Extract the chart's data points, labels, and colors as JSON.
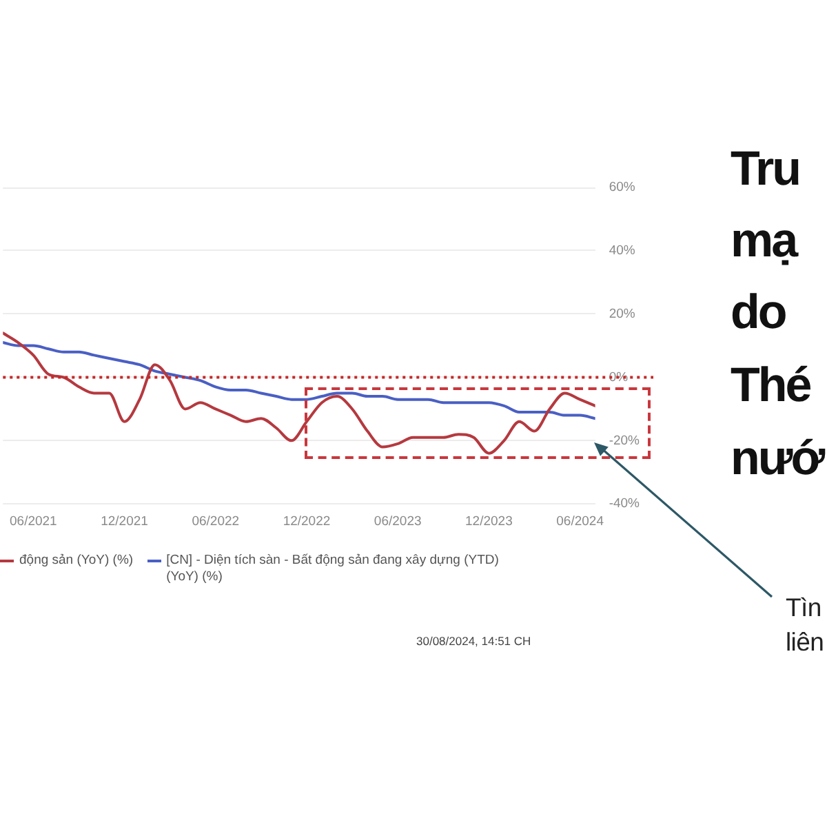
{
  "chart_data": {
    "type": "line",
    "x": [
      "2021-04",
      "2021-05",
      "2021-06",
      "2021-07",
      "2021-08",
      "2021-09",
      "2021-10",
      "2021-11",
      "2021-12",
      "2022-01",
      "2022-02",
      "2022-03",
      "2022-04",
      "2022-05",
      "2022-06",
      "2022-07",
      "2022-08",
      "2022-09",
      "2022-10",
      "2022-11",
      "2022-12",
      "2023-01",
      "2023-02",
      "2023-03",
      "2023-04",
      "2023-05",
      "2023-06",
      "2023-07",
      "2023-08",
      "2023-09",
      "2023-10",
      "2023-11",
      "2023-12",
      "2024-01",
      "2024-02",
      "2024-03",
      "2024-04",
      "2024-05",
      "2024-06",
      "2024-07"
    ],
    "xlim": [
      "2021-04",
      "2024-07"
    ],
    "xticks": [
      {
        "value": "2021-06",
        "label": "06/2021"
      },
      {
        "value": "2021-12",
        "label": "12/2021"
      },
      {
        "value": "2022-06",
        "label": "06/2022"
      },
      {
        "value": "2022-12",
        "label": "12/2022"
      },
      {
        "value": "2023-06",
        "label": "06/2023"
      },
      {
        "value": "2023-12",
        "label": "12/2023"
      },
      {
        "value": "2024-06",
        "label": "06/2024"
      }
    ],
    "ylim": [
      -40,
      60
    ],
    "yticks": [
      {
        "value": -40,
        "label": "-40%"
      },
      {
        "value": -20,
        "label": "-20%"
      },
      {
        "value": 0,
        "label": "0%"
      },
      {
        "value": 20,
        "label": "20%"
      },
      {
        "value": 40,
        "label": "40%"
      },
      {
        "value": 60,
        "label": "60%"
      }
    ],
    "grid": "y",
    "legend": "bottom",
    "marker": "none",
    "series": [
      {
        "name": "động sản (YoY) (%)",
        "color": "#b5393f",
        "values": [
          14,
          11,
          7,
          1,
          0,
          -3,
          -5,
          -5,
          -14,
          -7,
          4,
          -1,
          -10,
          -8,
          -10,
          -12,
          -14,
          -13,
          -16,
          -20,
          -14,
          -8,
          -6,
          -10,
          -17,
          -22,
          -21,
          -19,
          -19,
          -19,
          -18,
          -19,
          -24,
          -20,
          -14,
          -17,
          -10,
          -5,
          -7,
          -9
        ]
      },
      {
        "name": "[CN] - Diện tích sàn - Bất động sản đang xây dựng (YTD) (YoY) (%)",
        "color": "#4a5fc4",
        "values": [
          11,
          10,
          10,
          9,
          8,
          8,
          7,
          6,
          5,
          4,
          2,
          1,
          0,
          -1,
          -3,
          -4,
          -4,
          -5,
          -6,
          -7,
          -7,
          -6,
          -5,
          -5,
          -6,
          -6,
          -7,
          -7,
          -7,
          -8,
          -8,
          -8,
          -8,
          -9,
          -11,
          -11,
          -11,
          -12,
          -12,
          -13
        ]
      }
    ],
    "ref_lines": [
      {
        "axis": "y",
        "value": 0,
        "color": "#c62828",
        "line_style": "dotted"
      }
    ],
    "annotations": [
      "30/08/2024, 14:51 CH",
      "Tru",
      "mạ",
      "do",
      "Thé",
      "nướ",
      "Tìn",
      "liên"
    ]
  }
}
